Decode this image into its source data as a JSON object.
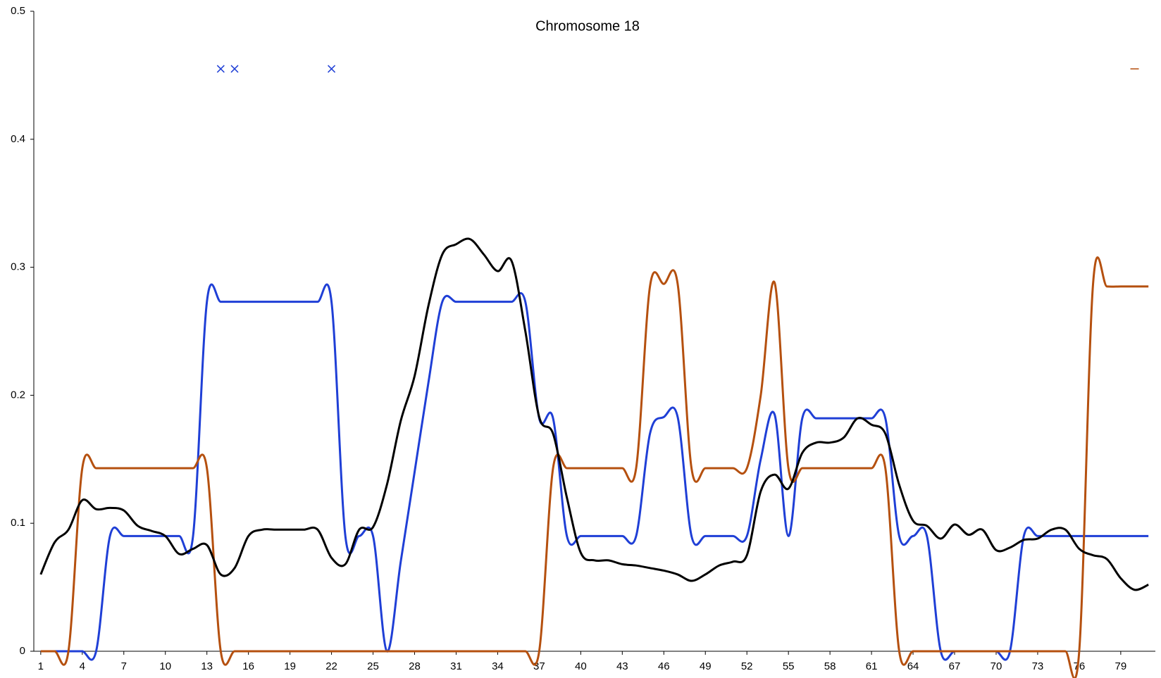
{
  "chart_data": {
    "type": "line",
    "title": "Chromosome 18",
    "x": [
      1,
      2,
      3,
      4,
      5,
      6,
      7,
      8,
      9,
      10,
      11,
      12,
      13,
      14,
      15,
      16,
      17,
      18,
      19,
      20,
      21,
      22,
      23,
      24,
      25,
      26,
      27,
      28,
      29,
      30,
      31,
      32,
      33,
      34,
      35,
      36,
      37,
      38,
      39,
      40,
      41,
      42,
      43,
      44,
      45,
      46,
      47,
      48,
      49,
      50,
      51,
      52,
      53,
      54,
      55,
      56,
      57,
      58,
      59,
      60,
      61,
      62,
      63,
      64,
      65,
      66,
      67,
      68,
      69,
      70,
      71,
      72,
      73,
      74,
      75,
      76,
      77,
      78,
      79,
      80,
      81
    ],
    "xlim": [
      0.5,
      81.5
    ],
    "xticks": [
      1,
      4,
      7,
      10,
      13,
      16,
      19,
      22,
      25,
      28,
      31,
      34,
      37,
      40,
      43,
      46,
      49,
      52,
      55,
      58,
      61,
      64,
      67,
      70,
      73,
      76,
      79
    ],
    "ylim": [
      0,
      0.5
    ],
    "yticks": [
      0,
      0.1,
      0.2,
      0.3,
      0.4,
      0.5
    ],
    "series": [
      {
        "color": "#1f3fd6",
        "values": [
          0,
          0,
          0,
          0,
          0,
          0.09,
          0.09,
          0.09,
          0.09,
          0.09,
          0.09,
          0.09,
          0.273,
          0.273,
          0.273,
          0.273,
          0.273,
          0.273,
          0.273,
          0.273,
          0.273,
          0.273,
          0.09,
          0.09,
          0.09,
          0,
          0.07,
          0.14,
          0.21,
          0.273,
          0.273,
          0.273,
          0.273,
          0.273,
          0.273,
          0.273,
          0.182,
          0.182,
          0.09,
          0.09,
          0.09,
          0.09,
          0.09,
          0.09,
          0.17,
          0.183,
          0.183,
          0.09,
          0.09,
          0.09,
          0.09,
          0.09,
          0.15,
          0.185,
          0.09,
          0.182,
          0.182,
          0.182,
          0.182,
          0.182,
          0.182,
          0.182,
          0.09,
          0.09,
          0.09,
          0,
          0,
          0,
          0,
          0,
          0,
          0.09,
          0.09,
          0.09,
          0.09,
          0.09,
          0.09,
          0.09,
          0.09,
          0.09,
          0.09
        ]
      },
      {
        "color": "#b5500f",
        "values": [
          0,
          0,
          0,
          0.143,
          0.143,
          0.143,
          0.143,
          0.143,
          0.143,
          0.143,
          0.143,
          0.143,
          0.143,
          0,
          0,
          0,
          0,
          0,
          0,
          0,
          0,
          0,
          0,
          0,
          0,
          0,
          0,
          0,
          0,
          0,
          0,
          0,
          0,
          0,
          0,
          0,
          0,
          0.143,
          0.143,
          0.143,
          0.143,
          0.143,
          0.143,
          0.143,
          0.285,
          0.287,
          0.287,
          0.143,
          0.143,
          0.143,
          0.143,
          0.143,
          0.2,
          0.288,
          0.143,
          0.143,
          0.143,
          0.143,
          0.143,
          0.143,
          0.143,
          0.143,
          0,
          0,
          0,
          0,
          0,
          0,
          0,
          0,
          0,
          0,
          0,
          0,
          0,
          0,
          0.287,
          0.285,
          0.285,
          0.285,
          0.285
        ]
      },
      {
        "color": "#000000",
        "values": [
          0.06,
          0.085,
          0.095,
          0.118,
          0.111,
          0.112,
          0.11,
          0.098,
          0.094,
          0.09,
          0.076,
          0.08,
          0.083,
          0.06,
          0.065,
          0.09,
          0.095,
          0.095,
          0.095,
          0.095,
          0.095,
          0.073,
          0.068,
          0.095,
          0.097,
          0.13,
          0.18,
          0.215,
          0.27,
          0.31,
          0.318,
          0.322,
          0.31,
          0.297,
          0.305,
          0.25,
          0.183,
          0.17,
          0.12,
          0.077,
          0.071,
          0.071,
          0.068,
          0.067,
          0.065,
          0.063,
          0.06,
          0.055,
          0.06,
          0.067,
          0.07,
          0.075,
          0.125,
          0.138,
          0.127,
          0.155,
          0.163,
          0.163,
          0.167,
          0.182,
          0.177,
          0.17,
          0.13,
          0.102,
          0.098,
          0.088,
          0.099,
          0.091,
          0.095,
          0.079,
          0.081,
          0.087,
          0.088,
          0.095,
          0.095,
          0.08,
          0.075,
          0.072,
          0.057,
          0.048,
          0.052
        ]
      }
    ],
    "markers": [
      {
        "color": "#1f3fd6",
        "symbol": "x",
        "x": [
          14,
          15,
          22
        ],
        "y": [
          0.455,
          0.455,
          0.455
        ]
      },
      {
        "color": "#b5500f",
        "symbol": "dash",
        "x": [
          80
        ],
        "y": [
          0.455
        ]
      }
    ]
  }
}
